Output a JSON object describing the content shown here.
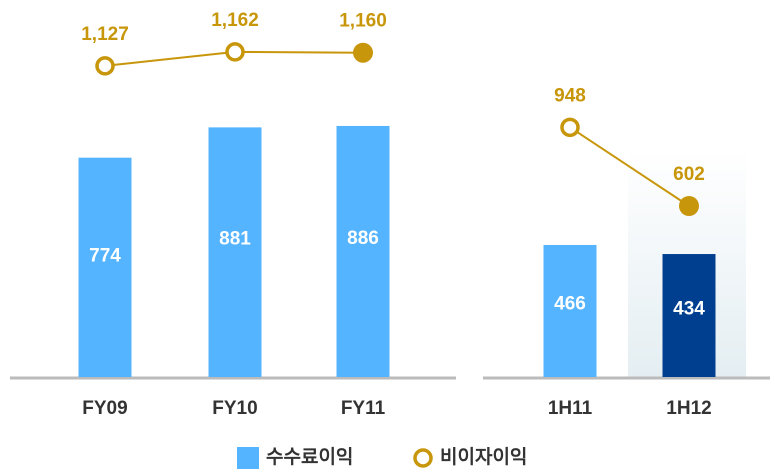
{
  "chart_data": [
    {
      "type": "bar-line",
      "categories": [
        "FY09",
        "FY10",
        "FY11"
      ],
      "ylim": [
        0,
        1260
      ],
      "y2lim": [
        347,
        1242
      ],
      "series": [
        {
          "name": "수수료이익",
          "color": "#55b4ff",
          "colors": [
            "#55b4ff",
            "#55b4ff",
            "#55b4ff"
          ],
          "values": [
            774,
            881,
            886
          ]
        },
        {
          "name": "비이자이익",
          "color": "#c8960a",
          "axis": "y2",
          "values": [
            1127,
            1162,
            1160
          ],
          "value_labels": [
            "1,127",
            "1,162",
            "1,160"
          ]
        }
      ]
    },
    {
      "type": "bar-line",
      "categories": [
        "1H11",
        "1H12"
      ],
      "ylim": [
        0,
        1260
      ],
      "y2lim": [
        -150,
        1420
      ],
      "series": [
        {
          "name": "수수료이익",
          "color": "#55b4ff",
          "colors": [
            "#55b4ff",
            "#003f8f"
          ],
          "values": [
            466,
            434
          ]
        },
        {
          "name": "비이자이익",
          "color": "#c8960a",
          "axis": "y2",
          "values": [
            948,
            602
          ],
          "value_labels": [
            "948",
            "602"
          ]
        }
      ]
    }
  ]
}
